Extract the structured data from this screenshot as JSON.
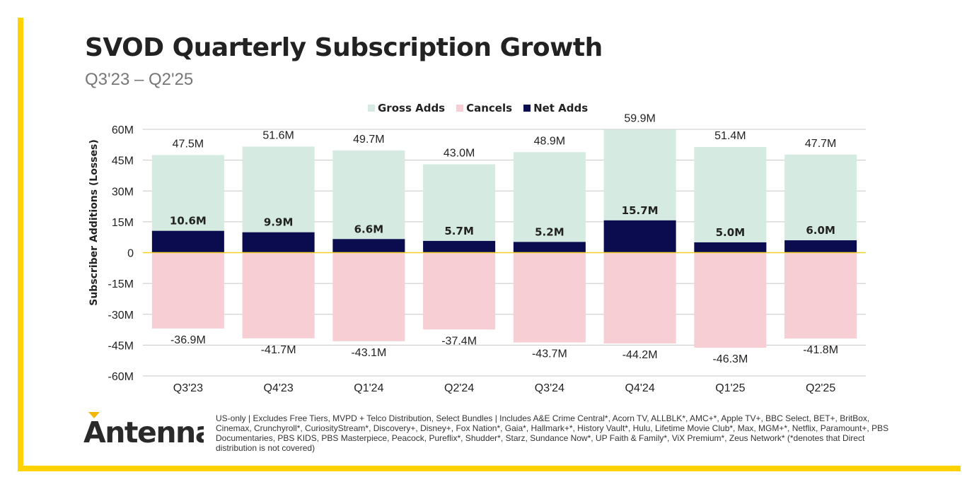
{
  "frame": {
    "accent_color": "#FFD200"
  },
  "title": "SVOD Quarterly Subscription Growth",
  "subtitle": "Q3'23 – Q2'25",
  "logo": {
    "text": "Antenna",
    "accent_color": "#F2B705"
  },
  "footnote": "US-only | Excludes Free Tiers, MVPD + Telco Distribution, Select Bundles | Includes A&E Crime Central*, Acorn TV, ALLBLK*, AMC+*, Apple TV+, BBC Select, BET+, BritBox, Cinemax, Crunchyroll*, CuriosityStream*, Discovery+, Disney+, Fox Nation*, Gaia*, Hallmark+*, History Vault*, Hulu, Lifetime Movie Club*, Max, MGM+*, Netflix, Paramount+, PBS Documentaries, PBS KIDS, PBS Masterpiece, Peacock, Pureflix*, Shudder*, Starz, Sundance Now*, UP Faith & Family*, ViX Premium*, Zeus Network* (*denotes that Direct distribution is not covered)",
  "chart_data": {
    "type": "bar",
    "title": "SVOD Quarterly Subscription Growth",
    "subtitle": "Q3'23 – Q2'25",
    "xlabel": "",
    "ylabel": "Subscriber Additions (Losses)",
    "ylim": [
      -60,
      60
    ],
    "yticks": [
      60,
      45,
      30,
      15,
      0,
      -15,
      -30,
      -45,
      -60
    ],
    "ytick_labels": [
      "60M",
      "45M",
      "30M",
      "15M",
      "0",
      "-15M",
      "-30M",
      "-45M",
      "-60M"
    ],
    "grid": true,
    "legend_position": "top-center",
    "categories": [
      "Q3'23",
      "Q4'23",
      "Q1'24",
      "Q2'24",
      "Q3'24",
      "Q4'24",
      "Q1'25",
      "Q2'25"
    ],
    "series": [
      {
        "name": "Gross Adds",
        "color": "#D5EAE0",
        "values": [
          47.5,
          51.6,
          49.7,
          43.0,
          48.9,
          59.9,
          51.4,
          47.7
        ],
        "labels": [
          "47.5M",
          "51.6M",
          "49.7M",
          "43.0M",
          "48.9M",
          "59.9M",
          "51.4M",
          "47.7M"
        ]
      },
      {
        "name": "Cancels",
        "color": "#F6CED3",
        "values": [
          -36.9,
          -41.7,
          -43.1,
          -37.4,
          -43.7,
          -44.2,
          -46.3,
          -41.8
        ],
        "labels": [
          "-36.9M",
          "-41.7M",
          "-43.1M",
          "-37.4M",
          "-43.7M",
          "-44.2M",
          "-46.3M",
          "-41.8M"
        ]
      },
      {
        "name": "Net Adds",
        "color": "#0B0B4F",
        "values": [
          10.6,
          9.9,
          6.6,
          5.7,
          5.2,
          15.7,
          5.0,
          6.0
        ],
        "labels": [
          "10.6M",
          "9.9M",
          "6.6M",
          "5.7M",
          "5.2M",
          "15.7M",
          "5.0M",
          "6.0M"
        ]
      }
    ],
    "zero_line_color": "#F2D023"
  }
}
